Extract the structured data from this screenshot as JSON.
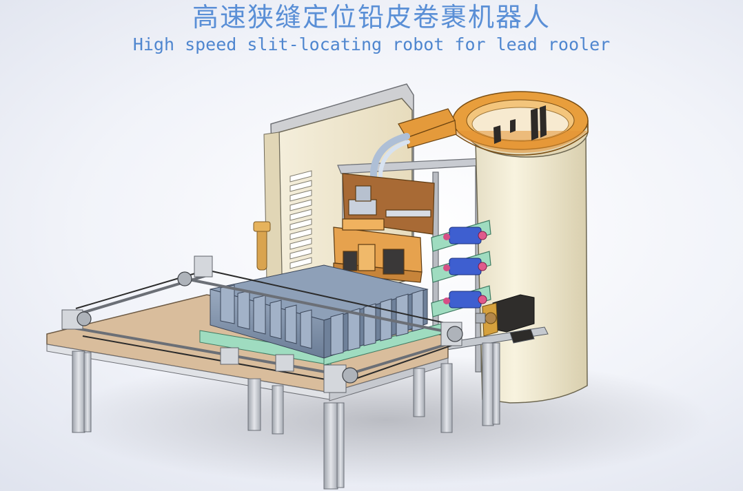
{
  "title": {
    "chinese": "高速狭缝定位铅皮卷裹机器人",
    "english": "High speed slit-locating robot for lead rooler"
  },
  "colors": {
    "title_text": "#5a8fd6",
    "background": "#f1f3f9",
    "cabinet": "#f3ecd6",
    "orange_parts": "#e8a24a",
    "battery_blocks": "#7f93ad",
    "board_green": "#9fdcc0",
    "motor_blue": "#3e5fd0",
    "aluminium_frame": "#c9ccd2"
  }
}
